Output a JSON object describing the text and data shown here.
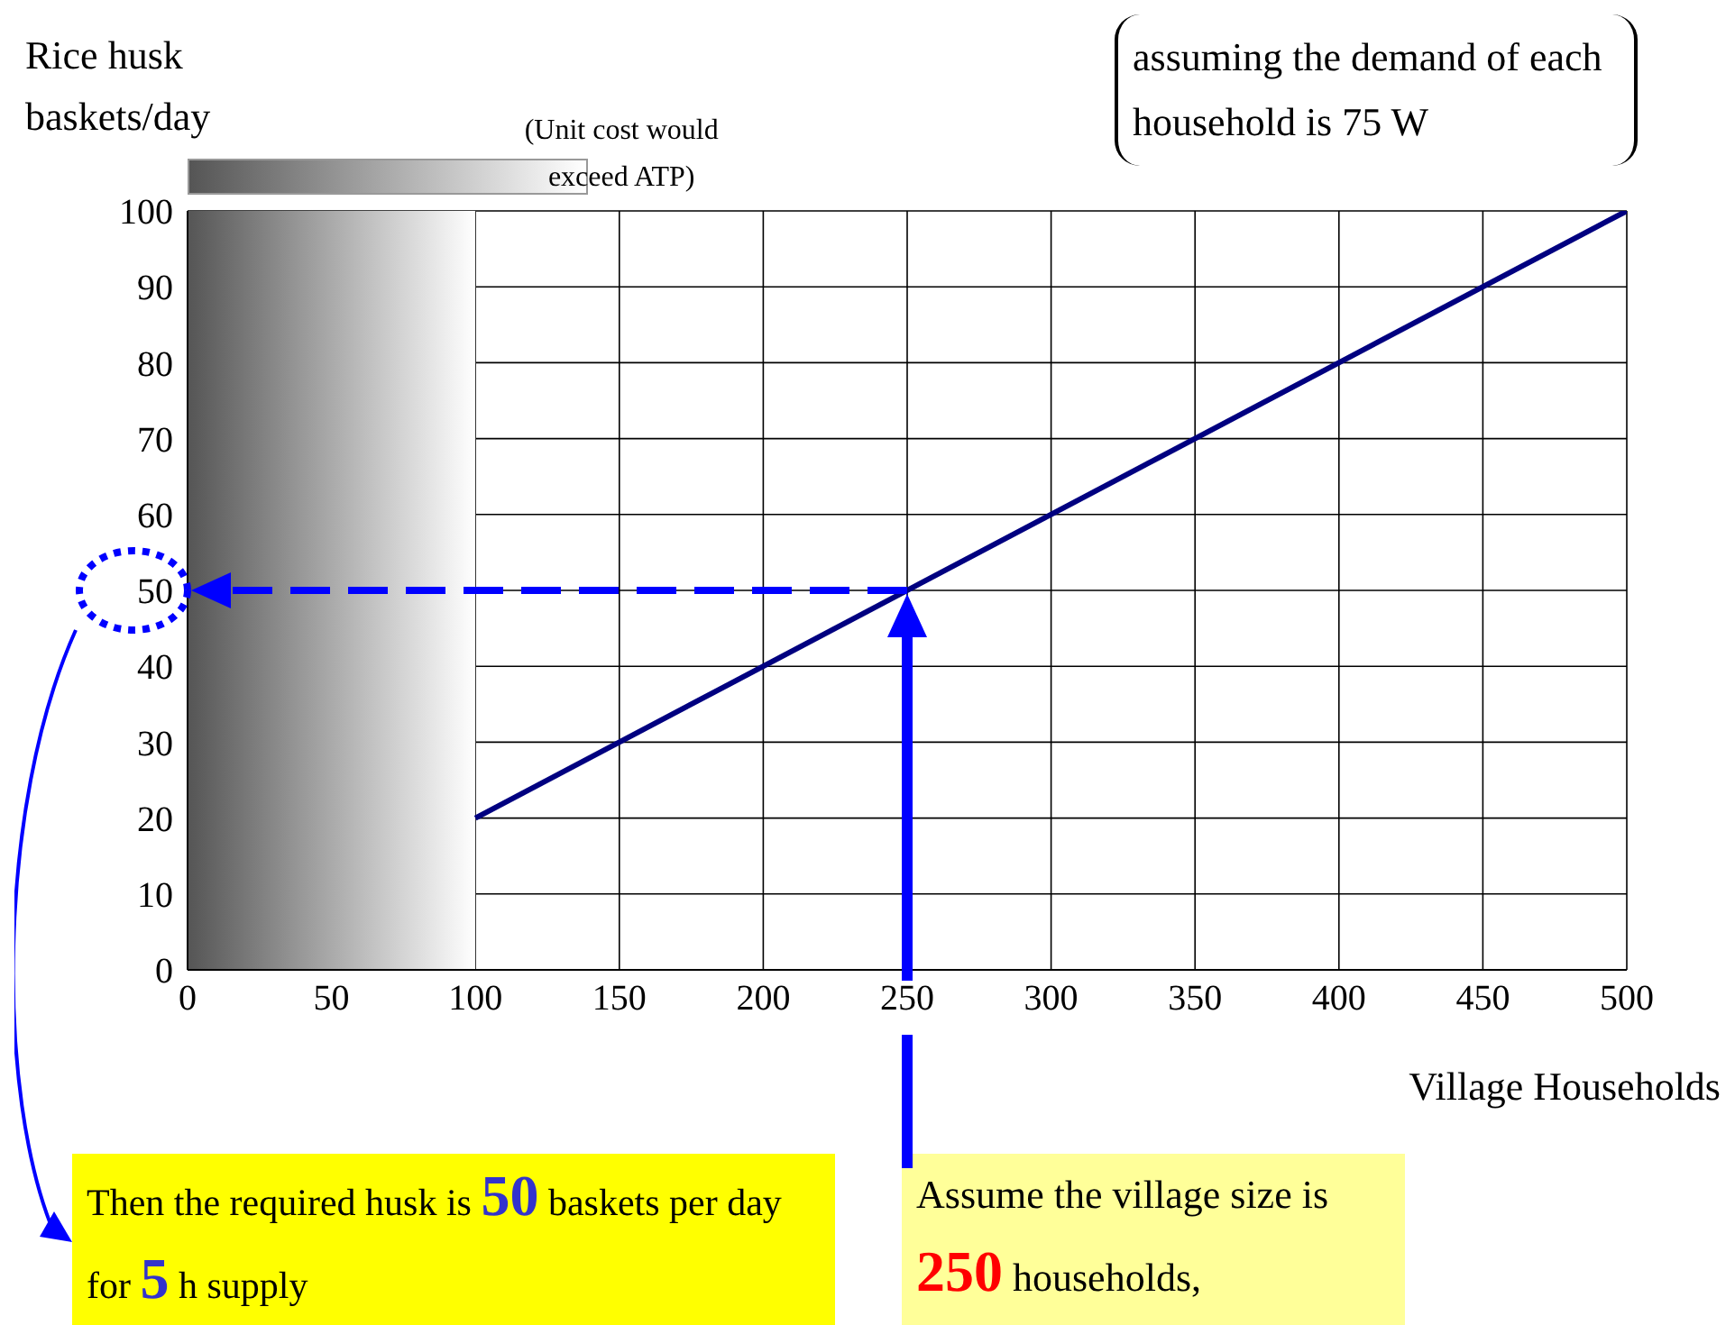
{
  "chart_data": {
    "type": "line",
    "ylabel": "Rice husk baskets/day",
    "xlabel": "Village Households",
    "series": [
      {
        "color": "#000080",
        "x": [
          100,
          500
        ],
        "values": [
          20,
          100
        ]
      }
    ],
    "xlim": [
      0,
      500
    ],
    "xticks": [
      0,
      50,
      100,
      150,
      200,
      250,
      300,
      350,
      400,
      450,
      500
    ],
    "ylim": [
      0,
      100
    ],
    "yticks": [
      0,
      10,
      20,
      30,
      40,
      50,
      60,
      70,
      80,
      90,
      100
    ],
    "grid": true,
    "legend": false,
    "marker": "none",
    "line_style": "solid",
    "bands": [
      {
        "axis": "x",
        "from": 0,
        "to": 100,
        "label": "(Unit cost would exceed ATP)"
      }
    ],
    "annotations": [
      "assuming the demand of each household is 75 W",
      "Then the required husk is 50 baskets per day for 5 h supply",
      "Assume the village size is 250 households,"
    ],
    "ref_lines": [
      {
        "axis": "y",
        "value": 50,
        "color": "#0000ff",
        "line_style": "dashed"
      },
      {
        "axis": "x",
        "value": 250,
        "color": "#0000ff",
        "line_style": "solid"
      }
    ]
  }
}
